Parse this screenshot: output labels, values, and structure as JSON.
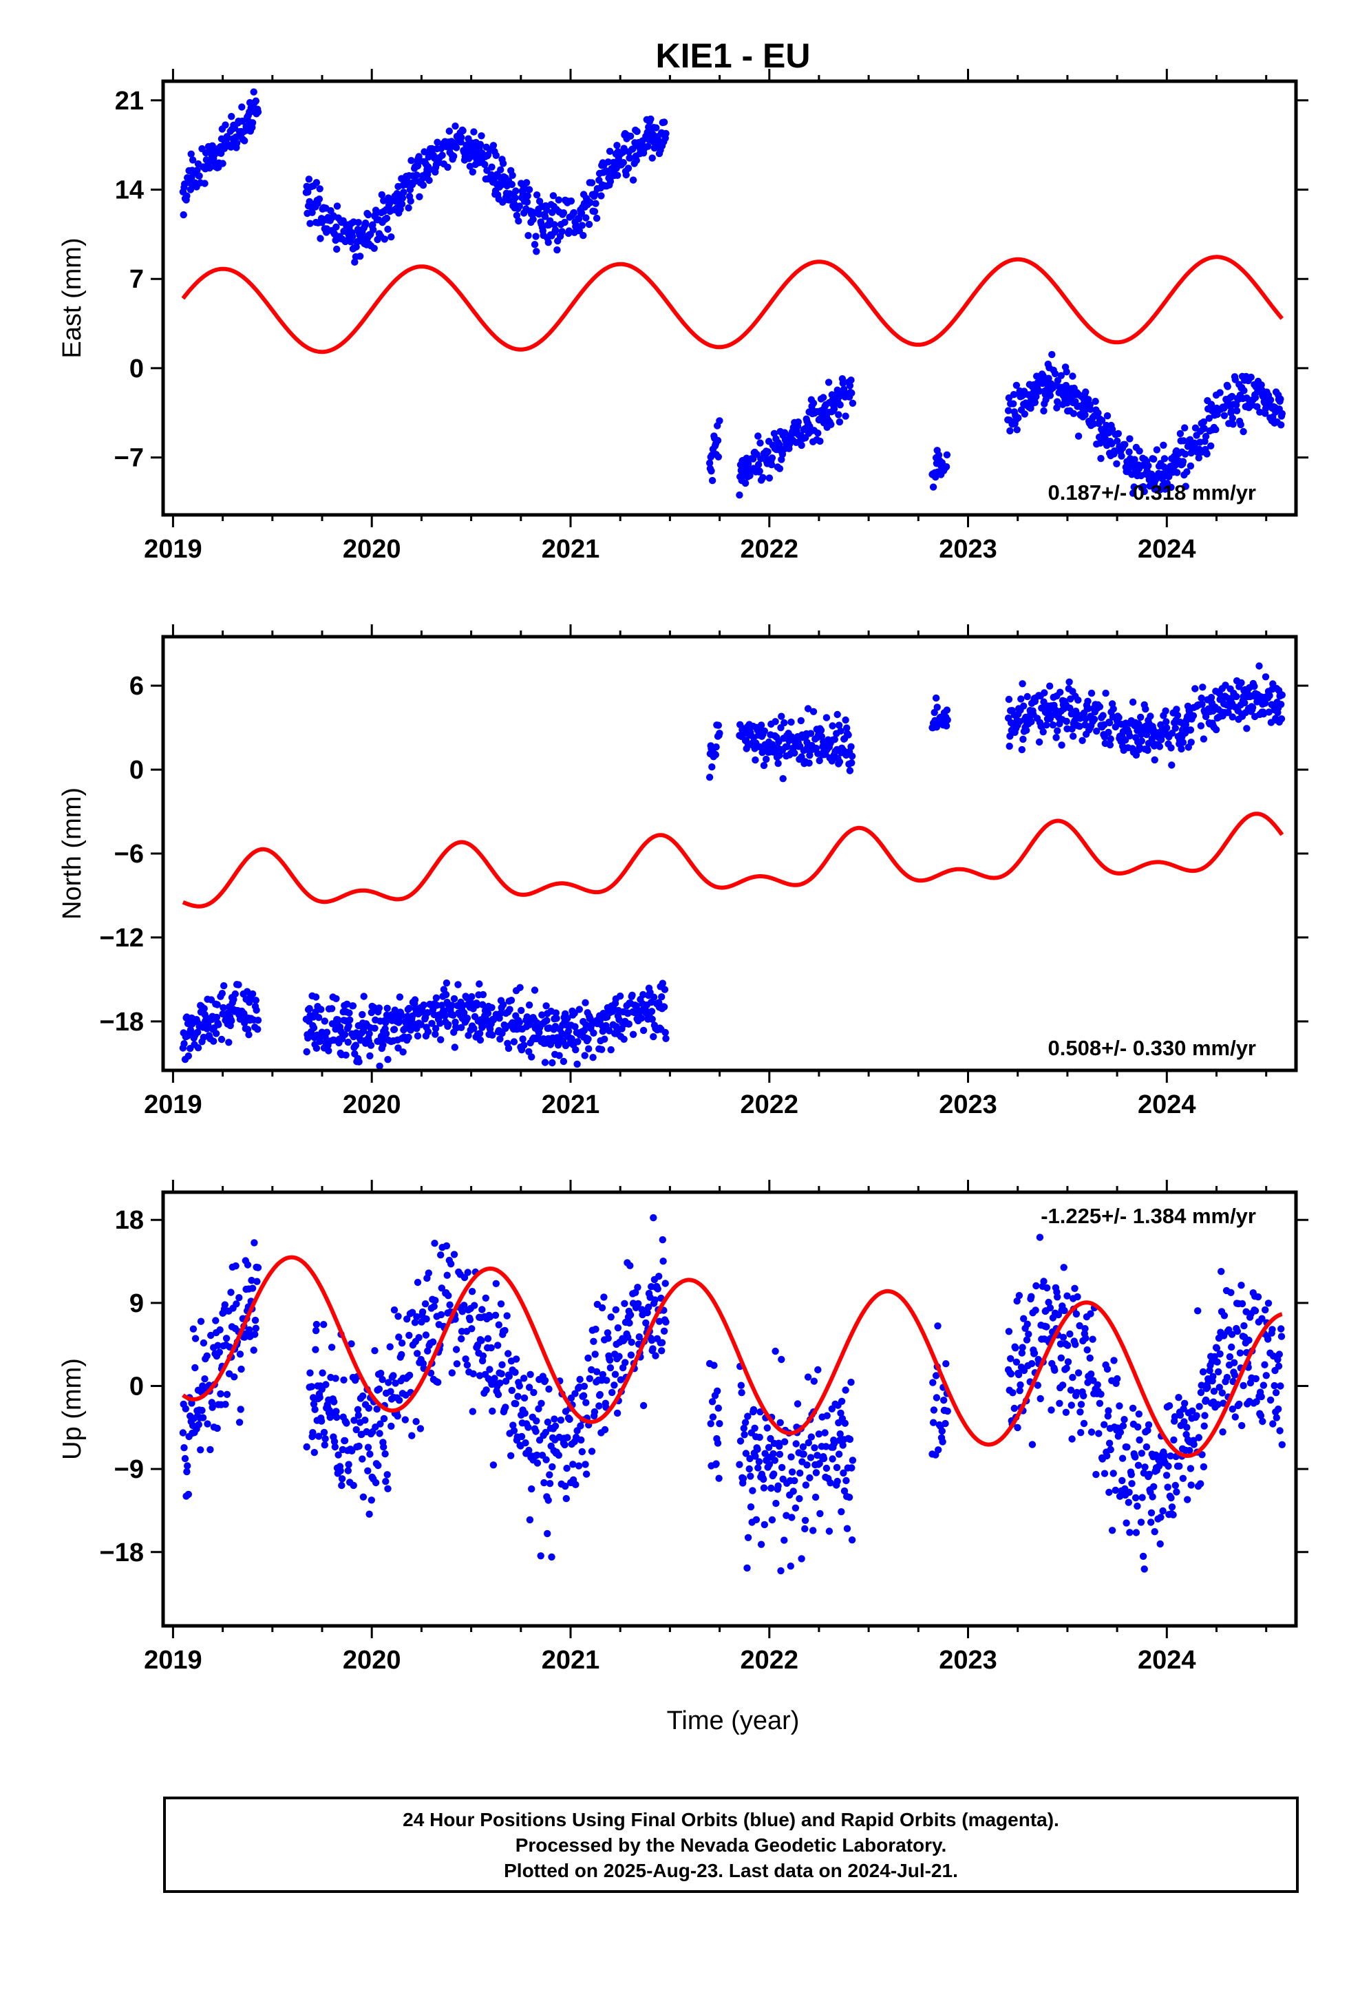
{
  "title": "KIE1 - EU",
  "xlabel": "Time (year)",
  "footer": {
    "line1": "24 Hour Positions Using Final Orbits (blue) and Rapid Orbits (magenta).",
    "line2": "Processed by the Nevada Geodetic Laboratory.",
    "line3": "Plotted on 2025-Aug-23. Last data on 2024-Jul-21."
  },
  "colors": {
    "data": "#0000ff",
    "model": "#ff0000",
    "frame": "#000000"
  },
  "chart_data": [
    {
      "type": "scatter",
      "ylabel": "East (mm)",
      "xlim": [
        2018.95,
        2024.65
      ],
      "ylim": [
        -11.5,
        22.5
      ],
      "xticks": [
        2019,
        2020,
        2021,
        2022,
        2023,
        2024
      ],
      "yticks": [
        21,
        14,
        7,
        0,
        -7
      ],
      "rate_label": "0.187+/- 0.318 mm/yr",
      "rate_position": "bottom-right",
      "data_segments": [
        {
          "x0": 2019.05,
          "x1": 2019.43,
          "yStart": 14,
          "yEnd": 20.5,
          "amp": 0,
          "sd": 0.8
        },
        {
          "x0": 2019.67,
          "x1": 2021.48,
          "yStart": 13.5,
          "yEnd": 15.0,
          "amp": 3.2,
          "sd": 0.9
        },
        {
          "x0": 2021.7,
          "x1": 2021.75,
          "yStart": -7.5,
          "yEnd": -5.5,
          "amp": 0,
          "sd": 0.8
        },
        {
          "x0": 2021.85,
          "x1": 2022.42,
          "yStart": -8.5,
          "yEnd": -1.5,
          "amp": 0,
          "sd": 0.8
        },
        {
          "x0": 2022.82,
          "x1": 2022.9,
          "yStart": -8.0,
          "yEnd": -7.0,
          "amp": 0,
          "sd": 0.6
        },
        {
          "x0": 2023.2,
          "x1": 2024.58,
          "yStart": -4.5,
          "yEnd": -5.5,
          "amp": 3.2,
          "sd": 0.9
        }
      ],
      "model": {
        "offset": 5.0,
        "trend": 0.187,
        "annual_amp": 3.3,
        "annual_peak": 2019.25,
        "semi_amp": 0,
        "semi_peak": 2019.0,
        "t0": 2019.05,
        "t1": 2024.58
      }
    },
    {
      "type": "scatter",
      "ylabel": "North (mm)",
      "xlim": [
        2018.95,
        2024.65
      ],
      "ylim": [
        -21.5,
        9.5
      ],
      "xticks": [
        2019,
        2020,
        2021,
        2022,
        2023,
        2024
      ],
      "yticks": [
        6,
        0,
        -6,
        -12,
        -18
      ],
      "rate_label": "0.508+/- 0.330 mm/yr",
      "rate_position": "bottom-right",
      "data_segments": [
        {
          "x0": 2019.05,
          "x1": 2019.43,
          "yStart": -18.3,
          "yEnd": -18.0,
          "amp": 0.6,
          "sd": 0.9
        },
        {
          "x0": 2019.67,
          "x1": 2021.48,
          "yStart": -18.0,
          "yEnd": -18.0,
          "amp": 0.8,
          "sd": 1.0
        },
        {
          "x0": 2021.7,
          "x1": 2021.75,
          "yStart": 0.5,
          "yEnd": 2.5,
          "amp": 0,
          "sd": 0.7
        },
        {
          "x0": 2021.85,
          "x1": 2022.42,
          "yStart": 3.0,
          "yEnd": 1.0,
          "amp": 0.5,
          "sd": 0.9
        },
        {
          "x0": 2022.82,
          "x1": 2022.9,
          "yStart": 3.5,
          "yEnd": 4.0,
          "amp": 0,
          "sd": 0.6
        },
        {
          "x0": 2023.2,
          "x1": 2024.58,
          "yStart": 3.0,
          "yEnd": 4.0,
          "amp": 1.2,
          "sd": 0.9
        }
      ],
      "model": {
        "offset": -7.0,
        "trend": 0.508,
        "annual_amp": 1.6,
        "annual_peak": 2019.45,
        "semi_amp": 1.0,
        "semi_peak": 2019.45,
        "t0": 2019.05,
        "t1": 2024.58
      }
    },
    {
      "type": "scatter",
      "ylabel": "Up (mm)",
      "xlim": [
        2018.95,
        2024.65
      ],
      "ylim": [
        -26,
        21
      ],
      "xticks": [
        2019,
        2020,
        2021,
        2022,
        2023,
        2024
      ],
      "yticks": [
        18,
        9,
        0,
        -9,
        -18
      ],
      "rate_label": "-1.225+/- 1.384 mm/yr",
      "rate_position": "top-right",
      "data_segments": [
        {
          "x0": 2019.05,
          "x1": 2019.43,
          "yStart": -1.0,
          "yEnd": 2.0,
          "amp": 6.5,
          "sd": 3.8
        },
        {
          "x0": 2019.67,
          "x1": 2021.48,
          "yStart": 2.0,
          "yEnd": 0.0,
          "amp": 7.0,
          "sd": 4.0
        },
        {
          "x0": 2021.7,
          "x1": 2021.75,
          "yStart": -2.0,
          "yEnd": -5.0,
          "amp": 0,
          "sd": 3.0
        },
        {
          "x0": 2021.85,
          "x1": 2022.42,
          "yStart": -6.0,
          "yEnd": -10.0,
          "amp": 2.0,
          "sd": 4.5
        },
        {
          "x0": 2022.82,
          "x1": 2022.9,
          "yStart": -2.0,
          "yEnd": -2.0,
          "amp": 0,
          "sd": 4.0
        },
        {
          "x0": 2023.2,
          "x1": 2024.58,
          "yStart": -2.0,
          "yEnd": -3.0,
          "amp": 8.0,
          "sd": 4.0
        }
      ],
      "model": {
        "offset": 3.0,
        "trend": -1.225,
        "annual_amp": 8.0,
        "annual_peak": 2019.6,
        "semi_amp": 0,
        "semi_peak": 2019.0,
        "t0": 2019.05,
        "t1": 2024.58
      }
    }
  ]
}
